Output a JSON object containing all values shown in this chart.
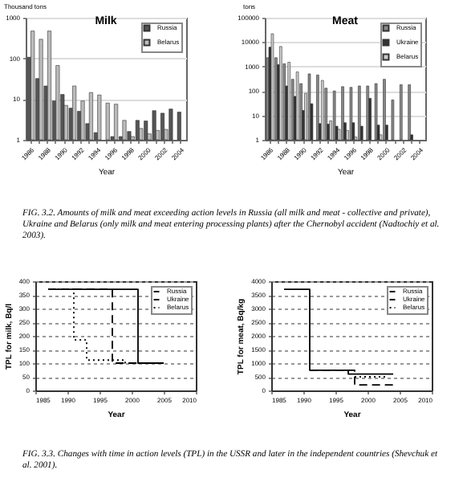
{
  "chart_data": [
    {
      "type": "bar",
      "title": "Milk",
      "ylabel": "Thousand tons",
      "xlabel": "Year",
      "log": true,
      "grid": "y",
      "legend": "top right",
      "categories": [
        "1986",
        null,
        "1988",
        null,
        "1990",
        null,
        "1992",
        null,
        "1994",
        null,
        "1996",
        null,
        "1998",
        null,
        "2000",
        null,
        "2002",
        null,
        "2004"
      ],
      "ylim": [
        1,
        1000
      ],
      "yticks": [
        1,
        10,
        100,
        1000
      ],
      "series": [
        {
          "name": "Russia",
          "color": "#555555",
          "values": [
            107,
            32,
            21,
            9,
            13,
            6,
            5,
            2.5,
            1.5,
            null,
            1.2,
            1.2,
            1.6,
            3,
            2.9,
            5.2,
            4.5,
            5.7,
            4.8
          ]
        },
        {
          "name": "Belarus",
          "color": "#bbbbbb",
          "values": [
            470,
            295,
            470,
            67,
            7,
            21,
            9,
            14.5,
            12.6,
            8,
            7.5,
            3,
            1.2,
            1.9,
            1.4,
            1.7,
            1.8,
            null,
            null
          ]
        }
      ],
      "annotations": [
        "FIG. 3.2. Amounts of milk and meat exceeding action levels in Russia (all milk and meat - collective and private), Ukraine and Belarus (only milk and meat entering processing plants) after the Chernobyl accident (Nadtochiy et al. 2003)."
      ]
    },
    {
      "type": "bar",
      "title": "Meat",
      "ylabel": "tons",
      "xlabel": "Year",
      "log": true,
      "grid": "y",
      "legend": "top right",
      "categories": [
        "1986",
        null,
        "1988",
        null,
        "1990",
        null,
        "1992",
        null,
        "1994",
        null,
        "1996",
        null,
        "1998",
        null,
        "2000",
        null,
        "2002",
        null,
        "2004"
      ],
      "ylim": [
        1,
        100000
      ],
      "yticks": [
        1,
        10,
        100,
        1000,
        10000,
        100000
      ],
      "series": [
        {
          "name": "Russia",
          "color": "#888888",
          "values": [
            2300,
            2300,
            1300,
            300,
            200,
            500,
            450,
            130,
            100,
            150,
            140,
            160,
            160,
            200,
            300,
            43,
            180,
            180,
            null
          ]
        },
        {
          "name": "Ukraine",
          "color": "#333333",
          "values": [
            6200,
            1200,
            160,
            60,
            16,
            30,
            4.6,
            4.4,
            3.6,
            5,
            5,
            3.6,
            50,
            4,
            4,
            null,
            null,
            1.6,
            null
          ]
        },
        {
          "name": "Belarus",
          "color": "#cccccc",
          "values": [
            22000,
            6600,
            1500,
            600,
            80,
            null,
            270,
            6,
            2.7,
            2.4,
            1.3,
            null,
            null,
            1.6,
            null,
            null,
            null,
            null,
            null
          ]
        }
      ]
    },
    {
      "type": "step",
      "ylabel": "TPL for milk, Bq/l",
      "xlabel": "Year",
      "grid": "y",
      "legend": "top right",
      "marker": "none",
      "xlim": [
        1985,
        2010
      ],
      "xticks": [
        1985,
        1990,
        1995,
        2000,
        2005,
        2010
      ],
      "ylim": [
        0,
        400
      ],
      "yticks": [
        0,
        50,
        100,
        150,
        200,
        250,
        300,
        350,
        400
      ],
      "series": [
        {
          "name": "Russia",
          "color": "#000000",
          "line_style": "solid",
          "x": [
            1987,
            2001,
            2005
          ],
          "values": [
            370,
            100,
            100
          ]
        },
        {
          "name": "Ukraine",
          "color": "#000000",
          "line_style": "dashed",
          "x": [
            1987,
            1997,
            2001
          ],
          "values": [
            370,
            100,
            100
          ]
        },
        {
          "name": "Belarus",
          "color": "#000000",
          "line_style": "dotted",
          "x": [
            1987,
            1991,
            1993,
            1999,
            2001
          ],
          "values": [
            370,
            185,
            111,
            100,
            100
          ]
        }
      ],
      "annotations": [
        "FIG. 3.3. Changes with time in action levels (TPL) in the USSR and later in the independent countries (Shevchuk et al. 2001)."
      ]
    },
    {
      "type": "step",
      "ylabel": "TPL for meat, Bq/kg",
      "xlabel": "Year",
      "grid": "y",
      "legend": "top right",
      "marker": "none",
      "xlim": [
        1985,
        2010
      ],
      "xticks": [
        1985,
        1990,
        1995,
        2000,
        2005,
        2010
      ],
      "ylim": [
        0,
        4000
      ],
      "yticks": [
        0,
        500,
        1000,
        1500,
        2000,
        2500,
        3000,
        3500,
        4000
      ],
      "series": [
        {
          "name": "Russia",
          "color": "#000000",
          "line_style": "solid",
          "x": [
            1987,
            1991,
            1997,
            2004
          ],
          "values": [
            3700,
            740,
            600,
            600
          ]
        },
        {
          "name": "Ukraine",
          "color": "#000000",
          "line_style": "dashed",
          "x": [
            1991,
            1998,
            2004
          ],
          "values": [
            740,
            200,
            200
          ]
        },
        {
          "name": "Belarus",
          "color": "#000000",
          "line_style": "dotted",
          "x": [
            1998,
            2003
          ],
          "values": [
            500,
            500
          ]
        }
      ]
    }
  ]
}
